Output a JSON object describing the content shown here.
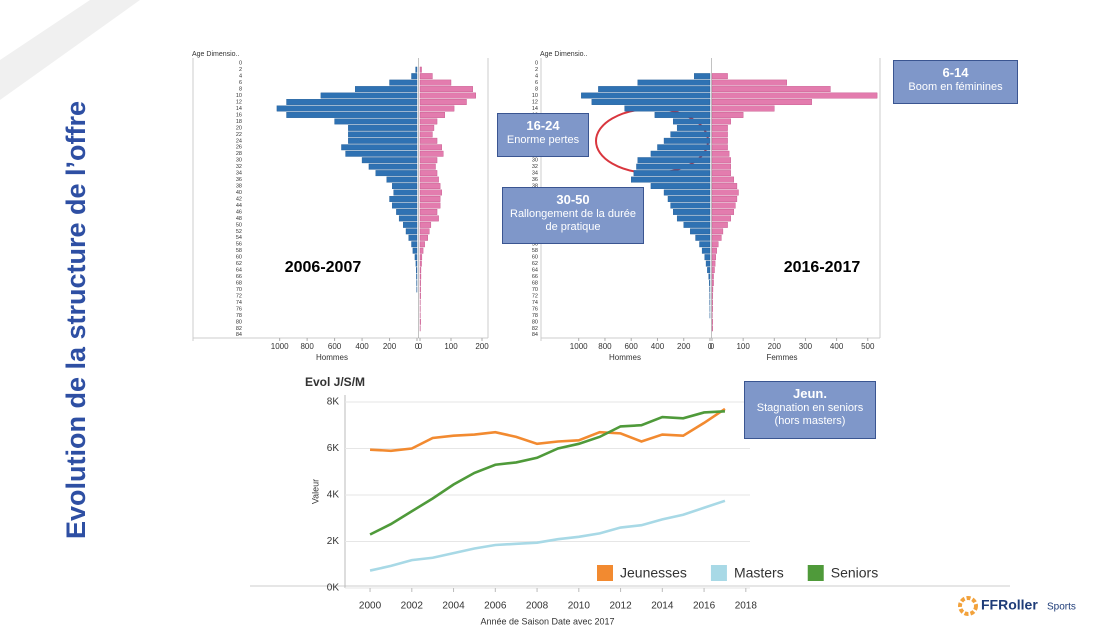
{
  "slide": {
    "title": "Evolution de la structure de l’offre",
    "callouts": [
      {
        "title": "6-14",
        "text": "Boom en féminines"
      },
      {
        "title": "16-24",
        "text": "Enorme pertes"
      },
      {
        "title": "30-50",
        "text": "Rallongement de la durée de pratique"
      },
      {
        "title": "Jeun.",
        "text": "Stagnation en seniors (hors masters)"
      }
    ],
    "logo": {
      "brand": "FFRoller",
      "suffix": "Sports"
    }
  },
  "chart_data": [
    {
      "type": "pyramid",
      "y_label": "Age Dimensio..",
      "annotation": "2006-2007",
      "categories": [
        0,
        2,
        4,
        6,
        8,
        10,
        12,
        14,
        16,
        18,
        20,
        22,
        24,
        26,
        28,
        30,
        32,
        34,
        36,
        38,
        40,
        42,
        44,
        46,
        48,
        50,
        52,
        54,
        56,
        58,
        60,
        62,
        64,
        66,
        68,
        70,
        72,
        74,
        76,
        78,
        80,
        82,
        84
      ],
      "series": [
        {
          "name": "Hommes",
          "color": "#2f72b3",
          "xlim": [
            0,
            1500
          ],
          "xticks": [
            1000,
            800,
            600,
            400,
            200,
            0
          ],
          "values": [
            0,
            10,
            40,
            200,
            450,
            700,
            950,
            1020,
            950,
            600,
            500,
            500,
            500,
            550,
            520,
            400,
            350,
            300,
            220,
            180,
            170,
            200,
            180,
            150,
            130,
            100,
            80,
            60,
            40,
            30,
            15,
            8,
            5,
            4,
            3,
            2,
            0,
            0,
            0,
            0,
            0,
            0,
            0
          ]
        },
        {
          "color": "#e37cae",
          "xlim": [
            0,
            200
          ],
          "xticks": [
            0,
            100,
            200
          ],
          "values": [
            0,
            5,
            40,
            100,
            170,
            180,
            150,
            110,
            80,
            55,
            45,
            40,
            55,
            70,
            75,
            55,
            50,
            55,
            60,
            65,
            70,
            65,
            65,
            55,
            60,
            35,
            30,
            25,
            15,
            10,
            6,
            5,
            3,
            3,
            2,
            2,
            2,
            1,
            1,
            1,
            2,
            1,
            0
          ]
        }
      ]
    },
    {
      "type": "pyramid",
      "y_label": "Age Dimensio..",
      "annotation": "2016-2017",
      "categories": [
        0,
        2,
        4,
        6,
        8,
        10,
        12,
        14,
        16,
        18,
        20,
        22,
        24,
        26,
        28,
        30,
        32,
        34,
        36,
        38,
        40,
        42,
        44,
        46,
        48,
        50,
        52,
        54,
        56,
        58,
        60,
        62,
        64,
        66,
        68,
        70,
        72,
        74,
        76,
        78,
        80,
        82,
        84
      ],
      "series": [
        {
          "name": "Hommes",
          "color": "#2f72b3",
          "xlim": [
            0,
            1150
          ],
          "xticks": [
            1000,
            800,
            600,
            400,
            200,
            0
          ],
          "values": [
            0,
            0,
            120,
            550,
            850,
            980,
            900,
            650,
            420,
            280,
            250,
            300,
            350,
            400,
            450,
            550,
            560,
            580,
            600,
            450,
            350,
            320,
            300,
            280,
            250,
            200,
            150,
            110,
            80,
            60,
            40,
            30,
            20,
            10,
            5,
            3,
            2,
            2,
            1,
            1,
            0,
            0,
            0
          ]
        },
        {
          "name": "Femmes",
          "color": "#e37cae",
          "xlim": [
            0,
            520
          ],
          "xticks": [
            0,
            100,
            200,
            300,
            400,
            500
          ],
          "values": [
            0,
            0,
            50,
            240,
            380,
            530,
            320,
            200,
            100,
            60,
            50,
            50,
            50,
            50,
            55,
            60,
            60,
            60,
            70,
            80,
            85,
            80,
            75,
            70,
            60,
            50,
            35,
            30,
            20,
            15,
            12,
            10,
            8,
            5,
            5,
            3,
            2,
            2,
            2,
            1,
            2,
            2,
            0
          ]
        }
      ]
    },
    {
      "type": "line",
      "title": "Evol J/S/M",
      "x_label": "Année de Saison Date avec 2017",
      "y_label": "Valeur",
      "x": [
        2000,
        2001,
        2002,
        2003,
        2004,
        2005,
        2006,
        2007,
        2008,
        2009,
        2010,
        2011,
        2012,
        2013,
        2014,
        2015,
        2016,
        2017
      ],
      "xlim": [
        1998.8,
        2018.2
      ],
      "xticks": [
        2000,
        2002,
        2004,
        2006,
        2008,
        2010,
        2012,
        2014,
        2016,
        2018
      ],
      "ylim": [
        0,
        8300
      ],
      "yticks": [
        {
          "value": 0,
          "label": "0K"
        },
        {
          "value": 2000,
          "label": "2K"
        },
        {
          "value": 4000,
          "label": "4K"
        },
        {
          "value": 6000,
          "label": "6K"
        },
        {
          "value": 8000,
          "label": "8K"
        }
      ],
      "grid": true,
      "legend": "lower right",
      "series": [
        {
          "name": "Jeunesses",
          "color": "#f28a30",
          "values": [
            5950,
            5900,
            6000,
            6450,
            6550,
            6600,
            6700,
            6500,
            6200,
            6300,
            6350,
            6700,
            6650,
            6300,
            6600,
            6550,
            7100,
            7700
          ]
        },
        {
          "name": "Masters",
          "color": "#a8d9e6",
          "values": [
            750,
            950,
            1200,
            1300,
            1500,
            1700,
            1850,
            1900,
            1950,
            2100,
            2200,
            2350,
            2600,
            2700,
            2950,
            3150,
            3450,
            3750
          ]
        },
        {
          "name": "Seniors",
          "color": "#4f9a3a",
          "values": [
            2300,
            2750,
            3300,
            3850,
            4450,
            4950,
            5300,
            5400,
            5600,
            6000,
            6200,
            6500,
            6950,
            7000,
            7350,
            7300,
            7550,
            7600
          ]
        }
      ]
    }
  ]
}
